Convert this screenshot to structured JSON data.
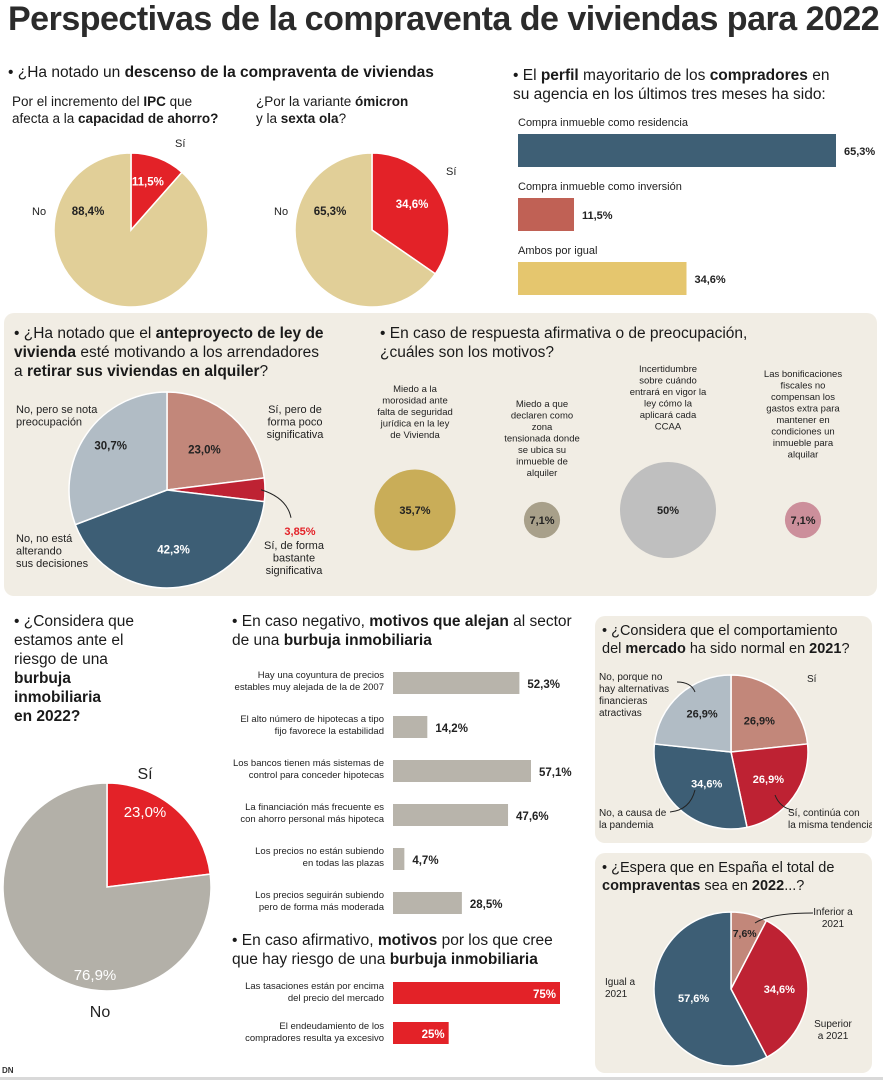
{
  "title": "Perspectivas de la compraventa de viviendas para 2022",
  "colors": {
    "beige": "#e1cf98",
    "red": "#e32228",
    "blue": "#3d5e75",
    "brick": "#c2877a",
    "lightblue": "#b1bcc5",
    "darkred": "#be2233",
    "gold": "#c9ad58",
    "olive": "#a8a08a",
    "silver": "#bfbfbf",
    "pink": "#cc8f9b",
    "grey": "#b3b0a8",
    "terra": "#c06155",
    "barblue": "#3e5f75",
    "bargold": "#e5c66e"
  },
  "sections": {
    "descenso": {
      "question_pre": "• ¿Ha notado un ",
      "question_bold": "descenso de la compraventa de viviendas",
      "ipc": {
        "l1_pre": "Por el incremento del ",
        "l1_bold": "IPC",
        "l1_post": " que",
        "l2_pre": "afecta a la ",
        "l2_bold": "capacidad de ahorro?"
      },
      "omicron": {
        "l1_pre": "¿Por la variante ",
        "l1_bold": "ómicron",
        "l2_pre": "y la ",
        "l2_bold": "sexta ola",
        "l2_post": "?"
      }
    },
    "perfil": {
      "q_pre": "• El ",
      "q_b1": "perfil",
      "q_mid": " mayoritario de los ",
      "q_b2": "compradores",
      "q_post": " en",
      "q_l2": "su agencia en los últimos tres meses ha sido:"
    },
    "anteproyecto": {
      "l1_pre": "• ¿Ha notado que el ",
      "l1_bold": "anteproyecto de ley de",
      "l2_bold": "vivienda",
      "l2_post": " esté motivando a los arrendadores",
      "l3_pre": "a ",
      "l3_bold": "retirar sus viviendas en alquiler",
      "l3_post": "?"
    },
    "motivos": {
      "l1": "• En caso de respuesta afirmativa o de preocupación,",
      "l2": "¿cuáles son los motivos?"
    },
    "burbuja": {
      "l1": "• ¿Considera que",
      "l2": "estamos ante el",
      "l3": "riesgo de una",
      "l4": "burbuja",
      "l5": "inmobiliaria",
      "l6": "en 2022?"
    },
    "negativo": {
      "l1_pre": "• En caso negativo, ",
      "l1_bold": "motivos que alejan",
      "l1_post": " al sector",
      "l2_pre": "de una ",
      "l2_bold": "burbuja inmobiliaria"
    },
    "afirmativo": {
      "l1_pre": "• En caso afirmativo, ",
      "l1_bold": "motivos",
      "l1_post": " por los que cree",
      "l2_pre": "que hay riesgo de una ",
      "l2_bold": "burbuja inmobiliaria"
    },
    "mercado": {
      "l1": "• ¿Considera que el comportamiento",
      "l2_pre": "del ",
      "l2_bold": "mercado",
      "l2_mid": " ha sido normal en ",
      "l2_b2": "2021",
      "l2_post": "?"
    },
    "espera": {
      "l1": "• ¿Espera que en España el total de",
      "l2_bold1": "compraventas",
      "l2_mid": " sea en ",
      "l2_bold2": "2022",
      "l2_post": "...?"
    }
  },
  "credit": "DN",
  "chart_data": [
    {
      "type": "pie",
      "id": "ipc",
      "slices": [
        {
          "label": "Sí",
          "value": 11.5,
          "display": "11,5%"
        },
        {
          "label": "No",
          "value": 88.4,
          "display": "88,4%"
        }
      ]
    },
    {
      "type": "pie",
      "id": "omicron",
      "slices": [
        {
          "label": "Sí",
          "value": 34.6,
          "display": "34,6%"
        },
        {
          "label": "No",
          "value": 65.3,
          "display": "65,3%"
        }
      ]
    },
    {
      "type": "bar",
      "id": "perfil",
      "orientation": "horizontal",
      "xlim": [
        0,
        65.3
      ],
      "categories": [
        "Compra inmueble como residencia",
        "Compra inmueble como inversión",
        "Ambos por igual"
      ],
      "values": [
        65.3,
        11.5,
        34.6
      ],
      "display": [
        "65,3%",
        "11,5%",
        "34,6%"
      ]
    },
    {
      "type": "pie",
      "id": "anteproyecto",
      "slices": [
        {
          "label": "Sí, pero de forma poco significativa",
          "value": 23.0,
          "display": "23,0%"
        },
        {
          "label": "Sí, de forma bastante significativa",
          "value": 3.85,
          "display": "3,85%"
        },
        {
          "label": "No, no está alterando sus decisiones",
          "value": 42.3,
          "display": "42,3%"
        },
        {
          "label": "No, pero se nota preocupación",
          "value": 30.7,
          "display": "30,7%"
        }
      ]
    },
    {
      "type": "bubble",
      "id": "motivos",
      "items": [
        {
          "label": "Miedo a la morosidad ante falta de seguridad jurídica en la ley de Vivienda",
          "value": 35.7,
          "display": "35,7%"
        },
        {
          "label": "Miedo a que declaren como zona tensionada donde se ubica su inmueble de alquiler",
          "value": 7.1,
          "display": "7,1%"
        },
        {
          "label": "Incertidumbre sobre cuándo entrará en vigor la ley cómo la aplicará cada CCAA",
          "value": 50,
          "display": "50%"
        },
        {
          "label": "Las bonificaciones fiscales no compensan los gastos extra para mantener en condiciones un inmueble para alquilar",
          "value": 7.1,
          "display": "7,1%"
        }
      ]
    },
    {
      "type": "pie",
      "id": "burbuja",
      "slices": [
        {
          "label": "Sí",
          "value": 23.0,
          "display": "23,0%"
        },
        {
          "label": "No",
          "value": 76.9,
          "display": "76,9%"
        }
      ]
    },
    {
      "type": "bar",
      "id": "negativo",
      "orientation": "horizontal",
      "xlim": [
        0,
        57.1
      ],
      "categories": [
        "Hay una coyuntura de precios estables muy alejada de la de 2007",
        "El alto número de hipotecas a tipo fijo favorece la estabilidad",
        "Los bancos tienen más sistemas de control para conceder hipotecas",
        "La financiación más frecuente es con ahorro personal más hipoteca",
        "Los precios no están subiendo en todas las plazas",
        "Los precios seguirán subiendo pero de forma más moderada"
      ],
      "values": [
        52.3,
        14.2,
        57.1,
        47.6,
        4.7,
        28.5
      ],
      "display": [
        "52,3%",
        "14,2%",
        "57,1%",
        "47,6%",
        "4,7%",
        "28,5%"
      ]
    },
    {
      "type": "bar",
      "id": "afirmativo",
      "orientation": "horizontal",
      "xlim": [
        0,
        75
      ],
      "categories": [
        "Las tasaciones están por encima del precio del mercado",
        "El endeudamiento de los compradores resulta ya excesivo"
      ],
      "values": [
        75,
        25
      ],
      "display": [
        "75%",
        "25%"
      ]
    },
    {
      "type": "pie",
      "id": "mercado",
      "slices": [
        {
          "label": "Sí",
          "value": 26.9,
          "display": "26,9%"
        },
        {
          "label": "Sí, continúa con la misma tendencia",
          "value": 26.9,
          "display": "26,9%"
        },
        {
          "label": "No, a causa de la pandemia",
          "value": 34.6,
          "display": "34,6%"
        },
        {
          "label": "No, porque no hay alternativas financieras atractivas",
          "value": 26.9,
          "display": "26,9%"
        }
      ]
    },
    {
      "type": "pie",
      "id": "espera",
      "slices": [
        {
          "label": "Inferior a 2021",
          "value": 7.6,
          "display": "7,6%"
        },
        {
          "label": "Superior a 2021",
          "value": 34.6,
          "display": "34,6%"
        },
        {
          "label": "Igual a 2021",
          "value": 57.6,
          "display": "57,6%"
        }
      ]
    }
  ]
}
